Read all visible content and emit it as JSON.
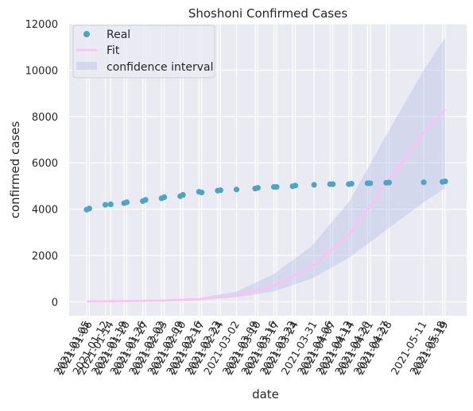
{
  "chart_data": {
    "type": "line",
    "title": "Shoshoni Confirmed Cases",
    "xlabel": "date",
    "ylabel": "confirmed cases",
    "ylim": [
      -600,
      12000
    ],
    "yticks": [
      0,
      2000,
      4000,
      6000,
      8000,
      10000,
      12000
    ],
    "grid": true,
    "legend_position": "top-left",
    "x_tick_labels": [
      "2021-01-05",
      "2021-01-06",
      "2021-01-12",
      "2021-01-14",
      "2021-01-19",
      "2021-01-20",
      "2021-01-26",
      "2021-01-27",
      "2021-02-02",
      "2021-02-03",
      "2021-02-09",
      "2021-02-10",
      "2021-02-16",
      "2021-02-17",
      "2021-02-23",
      "2021-02-24",
      "2021-03-02",
      "2021-03-09",
      "2021-03-10",
      "2021-03-16",
      "2021-03-17",
      "2021-03-23",
      "2021-03-24",
      "2021-03-31",
      "2021-04-06",
      "2021-04-07",
      "2021-04-13",
      "2021-04-14",
      "2021-04-20",
      "2021-04-21",
      "2021-04-27",
      "2021-04-28",
      "2021-05-11",
      "2021-05-18",
      "2021-05-19"
    ],
    "series": [
      {
        "name": "Real",
        "kind": "scatter",
        "color": "#4aa6c4",
        "x": [
          "2021-01-05",
          "2021-01-06",
          "2021-01-12",
          "2021-01-14",
          "2021-01-19",
          "2021-01-20",
          "2021-01-26",
          "2021-01-27",
          "2021-02-02",
          "2021-02-03",
          "2021-02-09",
          "2021-02-10",
          "2021-02-16",
          "2021-02-17",
          "2021-02-23",
          "2021-02-24",
          "2021-03-02",
          "2021-03-09",
          "2021-03-10",
          "2021-03-16",
          "2021-03-17",
          "2021-03-23",
          "2021-03-24",
          "2021-03-31",
          "2021-04-06",
          "2021-04-07",
          "2021-04-13",
          "2021-04-14",
          "2021-04-20",
          "2021-04-21",
          "2021-04-27",
          "2021-04-28",
          "2021-05-11",
          "2021-05-18",
          "2021-05-19"
        ],
        "values": [
          3980,
          4030,
          4190,
          4210,
          4260,
          4300,
          4350,
          4400,
          4470,
          4520,
          4560,
          4620,
          4750,
          4720,
          4800,
          4820,
          4850,
          4890,
          4920,
          4960,
          4960,
          4990,
          5020,
          5050,
          5080,
          5080,
          5080,
          5100,
          5120,
          5120,
          5140,
          5150,
          5160,
          5180,
          5200
        ]
      },
      {
        "name": "Fit",
        "kind": "line",
        "color": "#ffbff5",
        "x": [
          "2021-01-05",
          "2021-01-19",
          "2021-02-02",
          "2021-02-16",
          "2021-03-02",
          "2021-03-16",
          "2021-03-30",
          "2021-04-13",
          "2021-04-27",
          "2021-05-11",
          "2021-05-19"
        ],
        "values": [
          20,
          30,
          50,
          110,
          270,
          680,
          1500,
          2900,
          5100,
          7300,
          8300
        ]
      },
      {
        "name": "confidence interval",
        "kind": "band",
        "color": "#b9c3e6",
        "x": [
          "2021-01-05",
          "2021-01-19",
          "2021-02-02",
          "2021-02-16",
          "2021-03-02",
          "2021-03-16",
          "2021-03-30",
          "2021-04-13",
          "2021-04-27",
          "2021-05-11",
          "2021-05-19"
        ],
        "lower": [
          0,
          0,
          0,
          80,
          200,
          450,
          1000,
          1900,
          3100,
          4300,
          4900
        ],
        "upper": [
          60,
          80,
          100,
          170,
          450,
          1200,
          2400,
          4300,
          7200,
          10000,
          11400
        ]
      }
    ]
  }
}
